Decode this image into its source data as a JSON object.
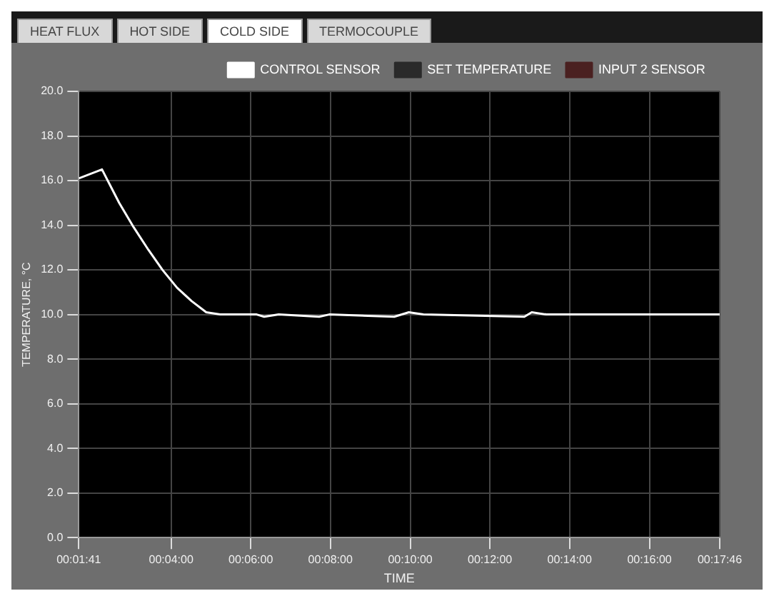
{
  "chart_data": {
    "type": "line",
    "xlabel": "TIME",
    "ylabel": "TEMPERATURE, °C",
    "annotations": [
      "HEAT FLUX",
      "HOT SIDE",
      "COLD SIDE",
      "TERMOCOUPLE"
    ],
    "x": [
      0.0281,
      0.0378,
      0.045,
      0.0511,
      0.0572,
      0.0631,
      0.0692,
      0.0753,
      0.0814,
      0.0872,
      0.1025,
      0.1056,
      0.1117,
      0.1286,
      0.1328,
      0.16,
      0.1661,
      0.1722,
      0.2144,
      0.2175,
      0.2236,
      0.2961
    ],
    "series": [
      {
        "name": "CONTROL SENSOR",
        "color": "#ffffff",
        "values": [
          16.1,
          16.5,
          15.0,
          13.9,
          12.9,
          12.0,
          11.2,
          10.6,
          10.1,
          10.0,
          10.0,
          9.9,
          10.0,
          9.9,
          10.0,
          9.9,
          10.1,
          10.0,
          9.9,
          10.1,
          10.0,
          10.0
        ]
      },
      {
        "name": "SET TEMPERATURE",
        "color": "#2a2a2a",
        "values": [
          null,
          null,
          null,
          null,
          null,
          null,
          null,
          null,
          null,
          null,
          null,
          null,
          null,
          null,
          null,
          null,
          null,
          null,
          null,
          null,
          null,
          null
        ]
      },
      {
        "name": "INPUT 2 SENSOR",
        "color": "#4a2020",
        "values": [
          null,
          null,
          null,
          null,
          null,
          null,
          null,
          null,
          null,
          null,
          null,
          null,
          null,
          null,
          null,
          null,
          null,
          null,
          null,
          null,
          null,
          null
        ]
      }
    ],
    "xlim": [
      0.0281,
      0.2961
    ],
    "xticks": [
      {
        "value": 0.0281,
        "label": "00:01:41"
      },
      {
        "value": 0.0667,
        "label": "00:04:00"
      },
      {
        "value": 0.1,
        "label": "00:06:00"
      },
      {
        "value": 0.1333,
        "label": "00:08:00"
      },
      {
        "value": 0.1667,
        "label": "00:10:00"
      },
      {
        "value": 0.2,
        "label": "00:12:00"
      },
      {
        "value": 0.2333,
        "label": "00:14:00"
      },
      {
        "value": 0.2667,
        "label": "00:16:00"
      },
      {
        "value": 0.2961,
        "label": "00:17:46"
      }
    ],
    "ylim": [
      0,
      20
    ],
    "yticks": [
      {
        "value": 0,
        "label": "0.0"
      },
      {
        "value": 2,
        "label": "2.0"
      },
      {
        "value": 4,
        "label": "4.0"
      },
      {
        "value": 6,
        "label": "6.0"
      },
      {
        "value": 8,
        "label": "8.0"
      },
      {
        "value": 10,
        "label": "10.0"
      },
      {
        "value": 12,
        "label": "12.0"
      },
      {
        "value": 14,
        "label": "14.0"
      },
      {
        "value": 16,
        "label": "16.0"
      },
      {
        "value": 18,
        "label": "18.0"
      },
      {
        "value": 20,
        "label": "20.0"
      }
    ],
    "grid": true,
    "legend": "top right",
    "marker": "none",
    "line_style": "solid"
  }
}
